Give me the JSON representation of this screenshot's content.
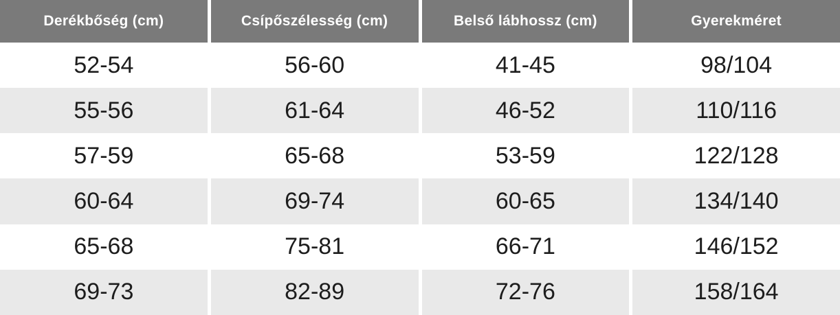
{
  "chart_data": {
    "type": "table",
    "columns": [
      "Derékbőség (cm)",
      "Csípőszélesség (cm)",
      "Belső lábhossz (cm)",
      "Gyerekméret"
    ],
    "rows": [
      [
        "52-54",
        "56-60",
        "41-45",
        "98/104"
      ],
      [
        "55-56",
        "61-64",
        "46-52",
        "110/116"
      ],
      [
        "57-59",
        "65-68",
        "53-59",
        "122/128"
      ],
      [
        "60-64",
        "69-74",
        "60-65",
        "134/140"
      ],
      [
        "65-68",
        "75-81",
        "66-71",
        "146/152"
      ],
      [
        "69-73",
        "82-89",
        "72-76",
        "158/164"
      ]
    ],
    "layout_hints": {
      "row_striping": "alternating white / light gray starting with white",
      "column_count": 4,
      "header_position": "top"
    }
  },
  "theme": {
    "header_bg": "#7a7a7a",
    "header_text": "#ffffff",
    "stripe_bg": "#e9e9e9",
    "row_bg": "#ffffff",
    "body_text": "#1d1d1d",
    "divider": "#ffffff"
  }
}
